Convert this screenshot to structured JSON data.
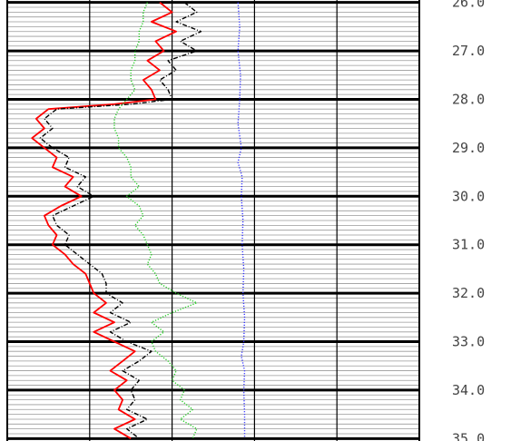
{
  "chart_data": {
    "type": "line",
    "title": "",
    "xlabel": "",
    "ylabel": "",
    "depth_axis": {
      "ylim": [
        25.95,
        35.05
      ],
      "tick_labels": [
        "26.0",
        "27.0",
        "28.0",
        "29.0",
        "30.0",
        "31.0",
        "32.0",
        "33.0",
        "34.0",
        "35.0"
      ],
      "major_ticks": [
        26,
        27,
        28,
        29,
        30,
        31,
        32,
        33,
        34,
        35
      ],
      "minor_step": 0.1
    },
    "x_axis": {
      "xlim": [
        0,
        5
      ],
      "vertical_gridlines": [
        0,
        1,
        2,
        3,
        4,
        5
      ],
      "tick_labels_shown": false
    },
    "grid": true,
    "legend": "none",
    "series": [
      {
        "color": "#ff0000",
        "style": "solid",
        "depth": [
          26.0,
          26.2,
          26.4,
          26.6,
          26.8,
          27.0,
          27.2,
          27.4,
          27.6,
          27.8,
          28.0,
          28.1,
          28.2,
          28.4,
          28.6,
          28.8,
          29.0,
          29.2,
          29.4,
          29.6,
          29.8,
          30.0,
          30.2,
          30.4,
          30.6,
          30.8,
          31.0,
          31.2,
          31.4,
          31.6,
          31.8,
          32.0,
          32.2,
          32.4,
          32.6,
          32.8,
          33.0,
          33.2,
          33.4,
          33.6,
          33.8,
          34.0,
          34.2,
          34.4,
          34.6,
          34.8,
          35.0
        ],
        "x": [
          1.85,
          2.0,
          1.75,
          2.05,
          1.8,
          1.9,
          1.7,
          1.85,
          1.65,
          1.75,
          1.8,
          1.3,
          0.5,
          0.35,
          0.45,
          0.3,
          0.45,
          0.6,
          0.55,
          0.8,
          0.7,
          0.9,
          0.65,
          0.45,
          0.5,
          0.6,
          0.55,
          0.7,
          0.8,
          0.95,
          1.0,
          1.05,
          1.2,
          1.05,
          1.3,
          1.05,
          1.3,
          1.55,
          1.4,
          1.25,
          1.45,
          1.3,
          1.4,
          1.35,
          1.55,
          1.3,
          1.5
        ]
      },
      {
        "color": "#000000",
        "style": "dash-dot",
        "depth": [
          26.0,
          26.2,
          26.4,
          26.6,
          26.8,
          27.0,
          27.2,
          27.4,
          27.6,
          27.8,
          28.0,
          28.1,
          28.2,
          28.4,
          28.6,
          28.8,
          29.0,
          29.2,
          29.4,
          29.6,
          29.8,
          30.0,
          30.2,
          30.4,
          30.6,
          30.8,
          31.0,
          31.2,
          31.4,
          31.6,
          31.8,
          32.0,
          32.2,
          32.4,
          32.6,
          32.8,
          33.0,
          33.2,
          33.4,
          33.6,
          33.8,
          34.0,
          34.2,
          34.4,
          34.6,
          34.8,
          35.0
        ],
        "x": [
          2.15,
          2.3,
          2.05,
          2.35,
          2.1,
          2.3,
          1.95,
          2.05,
          1.85,
          1.95,
          2.0,
          1.5,
          0.6,
          0.45,
          0.55,
          0.4,
          0.55,
          0.75,
          0.7,
          0.95,
          0.85,
          1.05,
          0.8,
          0.55,
          0.6,
          0.75,
          0.7,
          0.85,
          1.0,
          1.15,
          1.2,
          1.2,
          1.4,
          1.25,
          1.5,
          1.25,
          1.45,
          1.75,
          1.6,
          1.4,
          1.6,
          1.5,
          1.55,
          1.45,
          1.7,
          1.45,
          1.6
        ]
      },
      {
        "color": "#22cc22",
        "style": "dotted",
        "depth": [
          26.0,
          26.2,
          26.4,
          26.6,
          26.8,
          27.0,
          27.2,
          27.4,
          27.6,
          27.8,
          28.0,
          28.2,
          28.4,
          28.6,
          28.8,
          29.0,
          29.2,
          29.4,
          29.6,
          29.8,
          30.0,
          30.2,
          30.4,
          30.6,
          30.8,
          31.0,
          31.2,
          31.4,
          31.6,
          31.8,
          32.0,
          32.2,
          32.4,
          32.6,
          32.8,
          33.0,
          33.2,
          33.4,
          33.6,
          33.8,
          34.0,
          34.2,
          34.4,
          34.6,
          34.8,
          35.0
        ],
        "x": [
          1.7,
          1.65,
          1.65,
          1.6,
          1.6,
          1.55,
          1.55,
          1.5,
          1.5,
          1.55,
          1.45,
          1.35,
          1.3,
          1.3,
          1.35,
          1.35,
          1.45,
          1.5,
          1.5,
          1.6,
          1.45,
          1.6,
          1.65,
          1.55,
          1.65,
          1.7,
          1.75,
          1.7,
          1.8,
          1.85,
          2.05,
          2.3,
          2.0,
          1.75,
          1.9,
          1.75,
          1.8,
          1.95,
          2.05,
          2.0,
          2.15,
          2.1,
          2.25,
          2.1,
          2.3,
          2.25
        ]
      },
      {
        "color": "#3333ff",
        "style": "dotted",
        "depth": [
          26.0,
          26.5,
          27.0,
          27.5,
          28.0,
          28.5,
          29.0,
          29.3,
          29.6,
          30.0,
          30.5,
          31.0,
          31.5,
          32.0,
          32.5,
          33.0,
          33.3,
          33.6,
          34.0,
          34.5,
          35.0
        ],
        "x": [
          2.8,
          2.82,
          2.8,
          2.83,
          2.82,
          2.8,
          2.84,
          2.8,
          2.85,
          2.84,
          2.86,
          2.85,
          2.87,
          2.86,
          2.88,
          2.87,
          2.84,
          2.88,
          2.87,
          2.88,
          2.88
        ]
      }
    ]
  }
}
